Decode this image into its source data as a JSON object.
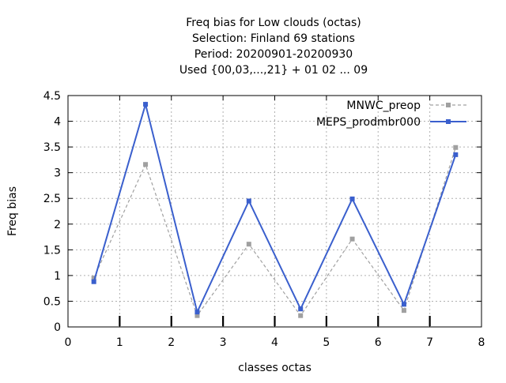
{
  "chart_data": {
    "type": "line",
    "title_lines": [
      "Freq bias  for Low clouds (octas)",
      "Selection: Finland     69 stations",
      "Period: 20200901-20200930",
      "Used {00,03,...,21} + 01 02 ... 09"
    ],
    "xlabel": "classes octas",
    "ylabel": "Freq bias",
    "xlim": [
      0,
      8
    ],
    "ylim": [
      0,
      4.5
    ],
    "xticks": [
      "0",
      "1",
      "2",
      "3",
      "4",
      "5",
      "6",
      "7",
      "8"
    ],
    "yticks": [
      "0",
      "0.5",
      "1",
      "1.5",
      "2",
      "2.5",
      "3",
      "3.5",
      "4",
      "4.5"
    ],
    "grid": true,
    "legend_position": "top-right",
    "x": [
      0.5,
      1.5,
      2.5,
      3.5,
      4.5,
      5.5,
      6.5,
      7.5
    ],
    "series": [
      {
        "name": "MNWC_preop",
        "color": "#a0a0a0",
        "style": "dashed",
        "values": [
          0.95,
          3.16,
          0.22,
          1.61,
          0.22,
          1.71,
          0.32,
          3.49
        ]
      },
      {
        "name": "MEPS_prodmbr000",
        "color": "#3a5fcd",
        "style": "solid",
        "values": [
          0.88,
          4.33,
          0.29,
          2.45,
          0.35,
          2.49,
          0.44,
          3.35
        ]
      }
    ]
  }
}
